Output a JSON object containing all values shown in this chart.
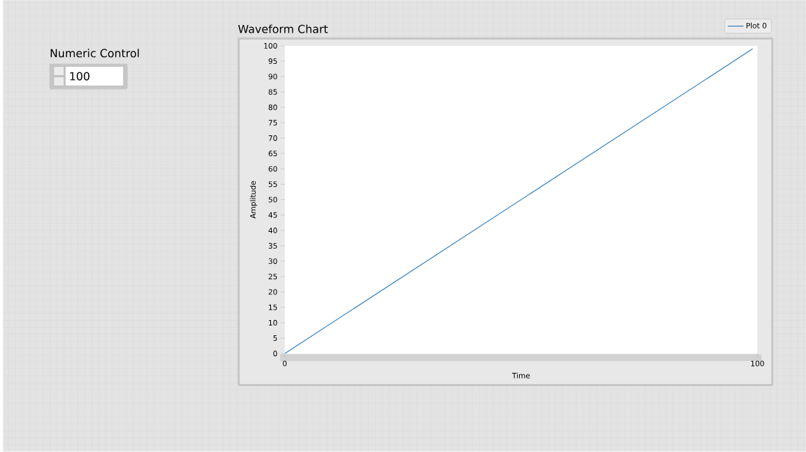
{
  "chart_data": {
    "type": "line",
    "title": "Waveform Chart",
    "xlabel": "Time",
    "ylabel": "Amplitude",
    "annotations": [
      "Numeric Control",
      "100"
    ],
    "series": [
      {
        "name": "Plot 0",
        "color": "#2b7bba",
        "x": [
          0,
          99
        ],
        "values": [
          0,
          99
        ]
      }
    ],
    "xlim": [
      0,
      100
    ],
    "ylim": [
      0,
      100
    ],
    "xticks": [
      0,
      100
    ],
    "yticks": [
      0,
      5,
      10,
      15,
      20,
      25,
      30,
      35,
      40,
      45,
      50,
      55,
      60,
      65,
      70,
      75,
      80,
      85,
      90,
      95,
      100
    ],
    "legend": "top right",
    "marker": "none",
    "line_style": "solid"
  }
}
